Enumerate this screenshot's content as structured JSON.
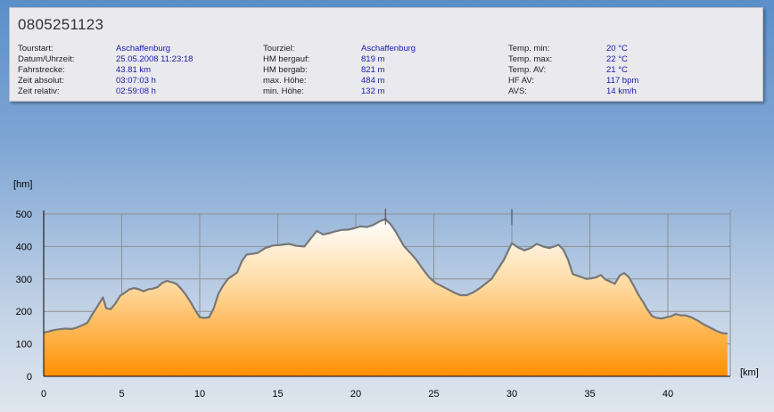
{
  "tour": {
    "title": "0805251123",
    "stats_columns": [
      [
        {
          "label": "Tourstart:",
          "value": "Aschaffenburg"
        },
        {
          "label": "Datum/Uhrzeit:",
          "value": "25.05.2008 11:23:18"
        },
        {
          "label": "Fahrstrecke:",
          "value": "43.81 km"
        },
        {
          "label": "Zeit absolut:",
          "value": "03:07:03 h"
        },
        {
          "label": "Zeit relativ:",
          "value": "02:59:08 h"
        }
      ],
      [
        {
          "label": "Tourziel:",
          "value": "Aschaffenburg"
        },
        {
          "label": "HM bergauf:",
          "value": "819 m"
        },
        {
          "label": "HM bergab:",
          "value": "821 m"
        },
        {
          "label": "max. Höhe:",
          "value": "484 m"
        },
        {
          "label": "min. Höhe:",
          "value": "132 m"
        }
      ],
      [
        {
          "label": "Temp. min:",
          "value": "20 °C"
        },
        {
          "label": "Temp. max:",
          "value": "22 °C"
        },
        {
          "label": "Temp. AV:",
          "value": "21 °C"
        },
        {
          "label": "HF AV:",
          "value": "117 bpm"
        },
        {
          "label": "AVS:",
          "value": "14 km/h"
        }
      ]
    ]
  },
  "chart_data": {
    "type": "area",
    "title": "",
    "xlabel": "[km]",
    "ylabel": "[hm]",
    "xlim": [
      0,
      44
    ],
    "ylim": [
      0,
      500
    ],
    "x_ticks": [
      0,
      5,
      10,
      15,
      20,
      25,
      30,
      35,
      40
    ],
    "y_ticks": [
      0,
      100,
      200,
      300,
      400,
      500
    ],
    "grid": true,
    "fill_colors": {
      "top": "#ffffff",
      "bottom": "#ff9000"
    },
    "line_color": "#777777",
    "markers_x": [
      21.9,
      30.0
    ],
    "x": [
      0,
      0.3,
      0.6,
      1.0,
      1.4,
      1.8,
      2.1,
      2.5,
      2.8,
      3.1,
      3.4,
      3.6,
      3.8,
      4.0,
      4.3,
      4.6,
      4.9,
      5.2,
      5.5,
      5.8,
      6.1,
      6.4,
      6.7,
      7.0,
      7.3,
      7.6,
      7.9,
      8.2,
      8.5,
      8.8,
      9.1,
      9.4,
      9.7,
      10.0,
      10.3,
      10.6,
      10.9,
      11.2,
      11.5,
      11.8,
      12.1,
      12.4,
      12.7,
      13.0,
      13.3,
      13.7,
      14.2,
      14.7,
      15.2,
      15.7,
      16.2,
      16.7,
      17.2,
      17.5,
      17.9,
      18.3,
      18.7,
      19.1,
      19.5,
      19.9,
      20.3,
      20.7,
      21.1,
      21.5,
      21.9,
      22.2,
      22.5,
      22.8,
      23.1,
      23.5,
      23.9,
      24.3,
      24.7,
      25.1,
      25.5,
      25.9,
      26.3,
      26.7,
      27.1,
      27.5,
      27.9,
      28.3,
      28.7,
      29.1,
      29.5,
      29.8,
      30.0,
      30.4,
      30.8,
      31.2,
      31.6,
      32.0,
      32.4,
      32.7,
      33.0,
      33.3,
      33.6,
      33.9,
      34.2,
      34.5,
      34.8,
      35.1,
      35.4,
      35.7,
      36.0,
      36.3,
      36.6,
      36.9,
      37.2,
      37.5,
      37.8,
      38.1,
      38.4,
      38.7,
      39.0,
      39.3,
      39.6,
      39.9,
      40.2,
      40.5,
      40.8,
      41.1,
      41.5,
      41.9,
      42.3,
      42.7,
      43.1,
      43.5,
      43.81
    ],
    "y": [
      135,
      138,
      142,
      145,
      147,
      146,
      150,
      158,
      165,
      190,
      212,
      228,
      243,
      210,
      207,
      225,
      248,
      258,
      268,
      272,
      268,
      262,
      268,
      270,
      275,
      288,
      294,
      290,
      285,
      270,
      252,
      230,
      205,
      182,
      180,
      182,
      210,
      255,
      280,
      300,
      310,
      320,
      355,
      375,
      377,
      380,
      395,
      403,
      405,
      408,
      402,
      400,
      430,
      448,
      437,
      441,
      447,
      451,
      452,
      456,
      462,
      460,
      466,
      477,
      484,
      470,
      450,
      425,
      400,
      380,
      358,
      330,
      305,
      288,
      278,
      268,
      258,
      250,
      250,
      258,
      270,
      285,
      300,
      330,
      360,
      390,
      410,
      397,
      388,
      395,
      408,
      400,
      395,
      400,
      405,
      390,
      360,
      315,
      310,
      305,
      300,
      302,
      305,
      312,
      298,
      292,
      285,
      310,
      318,
      305,
      280,
      252,
      230,
      205,
      185,
      180,
      178,
      182,
      185,
      192,
      188,
      188,
      182,
      172,
      160,
      150,
      140,
      133,
      132
    ]
  }
}
